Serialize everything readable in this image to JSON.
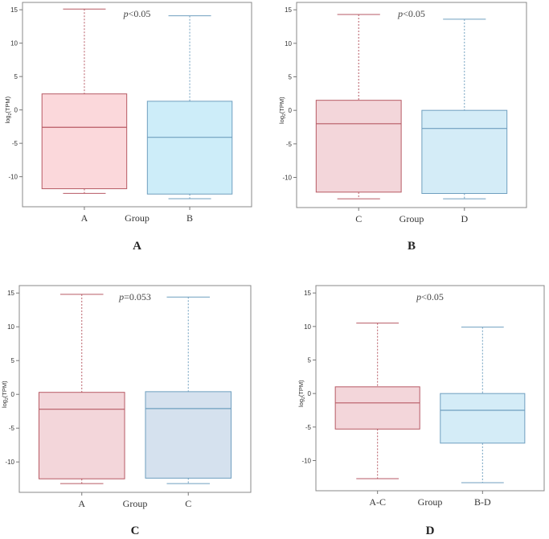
{
  "chart_data": [
    {
      "type": "box",
      "panel_label": "A",
      "title": "",
      "xlabel": "Group",
      "ylabel": "log2(TPM)",
      "ylim": [
        -14.5,
        16.1
      ],
      "yticks": [
        15,
        10,
        5,
        0,
        -5,
        -10
      ],
      "p_symbol": "p",
      "p_value": "<0.05",
      "series": [
        {
          "name": "A",
          "whisker_high": 15.1,
          "q3": 2.4,
          "median": -2.6,
          "q1": -11.8,
          "whisker_low": -12.5,
          "fill": "#fbd8db",
          "stroke": "#b75a64"
        },
        {
          "name": "B",
          "whisker_high": 14.1,
          "q3": 1.3,
          "median": -4.1,
          "q1": -12.6,
          "whisker_low": -13.3,
          "fill": "#cdedf9",
          "stroke": "#6f9fbf"
        }
      ]
    },
    {
      "type": "box",
      "panel_label": "B",
      "title": "",
      "xlabel": "Group",
      "ylabel": "log2(TPM)",
      "ylim": [
        -14.5,
        16.1
      ],
      "yticks": [
        15,
        10,
        5,
        0,
        -5,
        -10
      ],
      "p_symbol": "p",
      "p_value": "<0.05",
      "series": [
        {
          "name": "C",
          "whisker_high": 14.3,
          "q3": 1.5,
          "median": -2.0,
          "q1": -12.2,
          "whisker_low": -13.2,
          "fill": "#f3d6da",
          "stroke": "#b75a64"
        },
        {
          "name": "D",
          "whisker_high": 13.6,
          "q3": 0.0,
          "median": -2.7,
          "q1": -12.4,
          "whisker_low": -13.2,
          "fill": "#d4ecf7",
          "stroke": "#6f9fbf"
        }
      ]
    },
    {
      "type": "box",
      "panel_label": "C",
      "title": "",
      "xlabel": "Group",
      "ylabel": "log2(TPM)",
      "ylim": [
        -14.5,
        16.1
      ],
      "yticks": [
        15,
        10,
        5,
        0,
        -5,
        -10
      ],
      "p_symbol": "p",
      "p_value": "=0.053",
      "series": [
        {
          "name": "A",
          "whisker_high": 14.8,
          "q3": 0.3,
          "median": -2.2,
          "q1": -12.5,
          "whisker_low": -13.2,
          "fill": "#f3d6da",
          "stroke": "#b75a64"
        },
        {
          "name": "C",
          "whisker_high": 14.4,
          "q3": 0.4,
          "median": -2.1,
          "q1": -12.4,
          "whisker_low": -13.2,
          "fill": "#d5e1ee",
          "stroke": "#6f9fbf"
        }
      ]
    },
    {
      "type": "box",
      "panel_label": "D",
      "title": "",
      "xlabel": "Group",
      "ylabel": "log2(TPM)",
      "ylim": [
        -14.5,
        16.1
      ],
      "yticks": [
        15,
        10,
        5,
        0,
        -5,
        -10
      ],
      "p_symbol": "p",
      "p_value": "<0.05",
      "series": [
        {
          "name": "A-C",
          "whisker_high": 10.5,
          "q3": 1.0,
          "median": -1.4,
          "q1": -5.3,
          "whisker_low": -12.7,
          "fill": "#f3d6da",
          "stroke": "#b75a64"
        },
        {
          "name": "B-D",
          "whisker_high": 9.9,
          "q3": 0.0,
          "median": -2.5,
          "q1": -7.4,
          "whisker_low": -13.3,
          "fill": "#d4ecf7",
          "stroke": "#6f9fbf"
        }
      ]
    }
  ]
}
